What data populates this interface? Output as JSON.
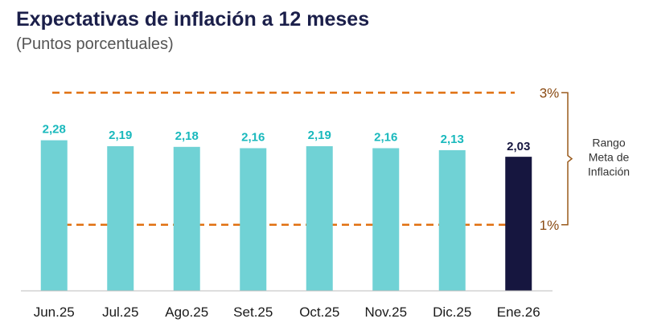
{
  "header": {
    "title": "Expectativas de inflación a 12 meses",
    "subtitle": "(Puntos porcentuales)"
  },
  "colors": {
    "bar": "#70d2d5",
    "bar_highlight": "#16163f",
    "value_label": "#1ab9bd",
    "value_label_highlight": "#16163f",
    "reference_line": "#e07010",
    "bracket": "#9a5a1c"
  },
  "chart_data": {
    "type": "bar",
    "title": "Expectativas de inflación a 12 meses",
    "subtitle": "(Puntos porcentuales)",
    "categories": [
      "Jun.25",
      "Jul.25",
      "Ago.25",
      "Set.25",
      "Oct.25",
      "Nov.25",
      "Dic.25",
      "Ene.26"
    ],
    "values": [
      2.28,
      2.19,
      2.18,
      2.16,
      2.19,
      2.16,
      2.13,
      2.03
    ],
    "value_labels": [
      "2,28",
      "2,19",
      "2,18",
      "2,16",
      "2,19",
      "2,16",
      "2,13",
      "2,03"
    ],
    "highlight_index": 7,
    "ylim": [
      0,
      3.75
    ],
    "grid": false,
    "reference_lines": [
      {
        "value": 3,
        "label": "3%",
        "style": "dashed"
      },
      {
        "value": 1,
        "label": "1%",
        "style": "dashed"
      }
    ],
    "range_annotation": {
      "lines": [
        "Rango",
        "Meta de",
        "Inflación"
      ],
      "from": 1,
      "to": 3
    }
  }
}
